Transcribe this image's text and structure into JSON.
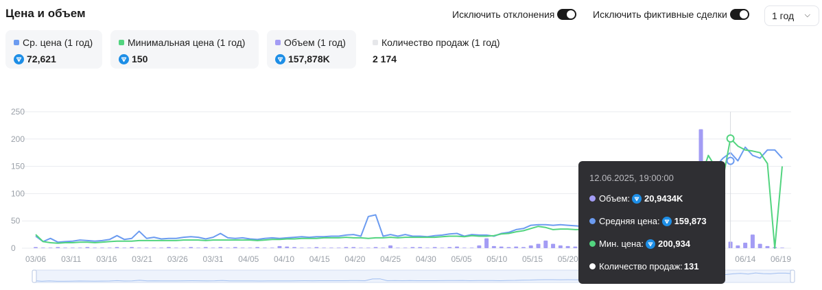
{
  "header": {
    "title": "Цена и объем",
    "exclude_outliers_label": "Исключить отклонения",
    "exclude_fake_label": "Исключить фиктивные сделки",
    "period": "1 год"
  },
  "stats": [
    {
      "label": "Ср. цена (1 год)",
      "value": "72,621",
      "color": "#6b9bf0",
      "ton": true
    },
    {
      "label": "Минимальная цена (1 год)",
      "value": "150",
      "color": "#52d47f",
      "ton": true
    },
    {
      "label": "Объем (1 год)",
      "value": "157,878K",
      "color": "#a39cf4",
      "ton": true
    },
    {
      "label": "Количество продаж (1 год)",
      "value": "2 174",
      "color": "#e6e7ea",
      "ton": false
    }
  ],
  "tooltip": {
    "timestamp": "12.06.2025, 19:00:00",
    "volume_label": "Объем:",
    "volume_value": "20,9434K",
    "avg_label": "Средняя цена:",
    "avg_value": "159,873",
    "min_label": "Мин. цена:",
    "min_value": "200,934",
    "count_label": "Количество продаж:",
    "count_value": "131"
  },
  "colors": {
    "avg": "#6b9bf0",
    "min": "#52d47f",
    "volume": "#a39cf4",
    "grid": "#e9ebef",
    "ton": "#1d8ee6"
  },
  "chart_data": {
    "type": "line",
    "x_range": [
      "2025-06-03",
      "2026-06-19"
    ],
    "ylim": [
      0,
      250
    ],
    "yticks": [
      0,
      50,
      100,
      150,
      200,
      250
    ],
    "xtick_labels": [
      "03/06",
      "03/11",
      "03/16",
      "03/21",
      "03/26",
      "03/31",
      "04/05",
      "04/10",
      "04/15",
      "04/20",
      "04/25",
      "04/30",
      "05/05",
      "05/10",
      "05/15",
      "05/20",
      "05/25",
      "05/30",
      "06/04",
      "06/09",
      "06/14",
      "06/19"
    ],
    "series": [
      {
        "name": "Ср. цена",
        "color": "#6b9bf0",
        "values": [
          22,
          12,
          18,
          11,
          12,
          13,
          15,
          14,
          13,
          14,
          16,
          23,
          16,
          18,
          31,
          18,
          20,
          17,
          18,
          18,
          20,
          21,
          20,
          17,
          20,
          27,
          19,
          18,
          19,
          17,
          16,
          18,
          19,
          18,
          19,
          20,
          21,
          20,
          21,
          21,
          22,
          22,
          24,
          25,
          22,
          58,
          61,
          22,
          25,
          22,
          25,
          22,
          22,
          21,
          23,
          24,
          26,
          27,
          22,
          25,
          24,
          24,
          22,
          27,
          29,
          34,
          36,
          42,
          43,
          43,
          42,
          43,
          42,
          41,
          40,
          39,
          38,
          41,
          40,
          39,
          41,
          42,
          43,
          45,
          48,
          52,
          58,
          63,
          68,
          78,
          95,
          120,
          150,
          165,
          175,
          160,
          185,
          170,
          165,
          180,
          180,
          165
        ]
      },
      {
        "name": "Мин. цена",
        "color": "#52d47f",
        "values": [
          25,
          12,
          10,
          9,
          10,
          10,
          11,
          11,
          10,
          11,
          12,
          13,
          13,
          13,
          14,
          14,
          14,
          14,
          14,
          14,
          15,
          15,
          15,
          14,
          15,
          15,
          15,
          15,
          15,
          15,
          14,
          15,
          16,
          16,
          17,
          17,
          18,
          18,
          18,
          19,
          19,
          19,
          20,
          19,
          19,
          18,
          19,
          19,
          20,
          19,
          20,
          20,
          20,
          20,
          20,
          21,
          22,
          22,
          21,
          23,
          22,
          22,
          23,
          26,
          27,
          30,
          32,
          36,
          40,
          38,
          34,
          35,
          35,
          34,
          34,
          35,
          34,
          35,
          36,
          37,
          38,
          40,
          42,
          45,
          48,
          52,
          55,
          62,
          75,
          100,
          130,
          170,
          148,
          128,
          201,
          187,
          180,
          178,
          175,
          155,
          0,
          150
        ]
      },
      {
        "name": "Объем",
        "color": "#a39cf4",
        "values": [
          2,
          1,
          1,
          2,
          1,
          1,
          1,
          2,
          1,
          1,
          1,
          2,
          1,
          2,
          1,
          1,
          1,
          1,
          2,
          1,
          1,
          2,
          1,
          2,
          1,
          2,
          1,
          2,
          1,
          1,
          2,
          1,
          1,
          4,
          3,
          2,
          1,
          1,
          2,
          1,
          1,
          1,
          2,
          2,
          1,
          1,
          2,
          1,
          5,
          1,
          1,
          2,
          2,
          1,
          2,
          1,
          2,
          3,
          1,
          1,
          5,
          18,
          4,
          3,
          2,
          3,
          2,
          5,
          8,
          14,
          8,
          5,
          4,
          3,
          2,
          4,
          3,
          2,
          3,
          4,
          2,
          3,
          3,
          4,
          5,
          3,
          4,
          6,
          5,
          4,
          218,
          22,
          75,
          150,
          12,
          5,
          10,
          25,
          8,
          4,
          2,
          1
        ]
      }
    ]
  }
}
